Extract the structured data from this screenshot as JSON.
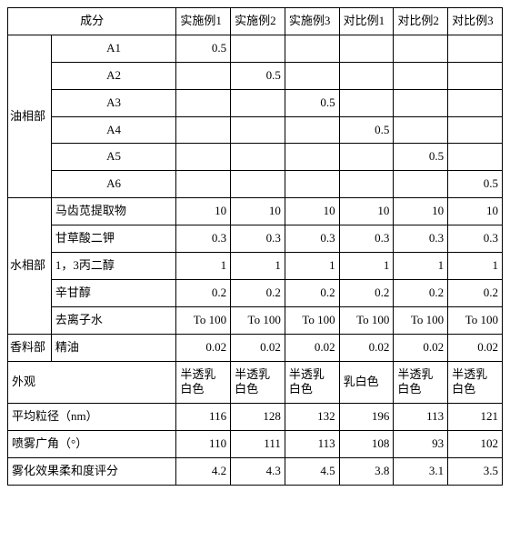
{
  "table": {
    "header": {
      "ingredient": "成分",
      "cols": [
        "实施例1",
        "实施例2",
        "实施例3",
        "对比例1",
        "对比例2",
        "对比例3"
      ]
    },
    "oil": {
      "group": "油相部",
      "rows": [
        {
          "label": "A1",
          "vals": [
            "0.5",
            "",
            "",
            "",
            "",
            ""
          ]
        },
        {
          "label": "A2",
          "vals": [
            "",
            "0.5",
            "",
            "",
            "",
            ""
          ]
        },
        {
          "label": "A3",
          "vals": [
            "",
            "",
            "0.5",
            "",
            "",
            ""
          ]
        },
        {
          "label": "A4",
          "vals": [
            "",
            "",
            "",
            "0.5",
            "",
            ""
          ]
        },
        {
          "label": "A5",
          "vals": [
            "",
            "",
            "",
            "",
            "0.5",
            ""
          ]
        },
        {
          "label": "A6",
          "vals": [
            "",
            "",
            "",
            "",
            "",
            "0.5"
          ]
        }
      ]
    },
    "water": {
      "group": "水相部",
      "rows": [
        {
          "label": "马齿苋提取物",
          "vals": [
            "10",
            "10",
            "10",
            "10",
            "10",
            "10"
          ]
        },
        {
          "label": "甘草酸二钾",
          "vals": [
            "0.3",
            "0.3",
            "0.3",
            "0.3",
            "0.3",
            "0.3"
          ]
        },
        {
          "label": "1，3丙二醇",
          "vals": [
            "1",
            "1",
            "1",
            "1",
            "1",
            "1"
          ]
        },
        {
          "label": "辛甘醇",
          "vals": [
            "0.2",
            "0.2",
            "0.2",
            "0.2",
            "0.2",
            "0.2"
          ]
        },
        {
          "label": "去离子水",
          "vals": [
            "To 100",
            "To 100",
            "To 100",
            "To 100",
            "To 100",
            "To 100"
          ]
        }
      ]
    },
    "fragrance": {
      "group": "香料部",
      "label": "精油",
      "vals": [
        "0.02",
        "0.02",
        "0.02",
        "0.02",
        "0.02",
        "0.02"
      ]
    },
    "appearance": {
      "label": "外观",
      "vals": [
        "半透乳白色",
        "半透乳白色",
        "半透乳白色",
        "乳白色",
        "半透乳白色",
        "半透乳白色"
      ]
    },
    "avgSize": {
      "label": "平均粒径（nm）",
      "vals": [
        "116",
        "128",
        "132",
        "196",
        "113",
        "121"
      ]
    },
    "sprayAngle": {
      "label": "喷雾广角（°）",
      "vals": [
        "110",
        "111",
        "113",
        "108",
        "93",
        "102"
      ]
    },
    "softness": {
      "label": "雾化效果柔和度评分",
      "vals": [
        "4.2",
        "4.3",
        "4.5",
        "3.8",
        "3.1",
        "3.5"
      ]
    }
  }
}
